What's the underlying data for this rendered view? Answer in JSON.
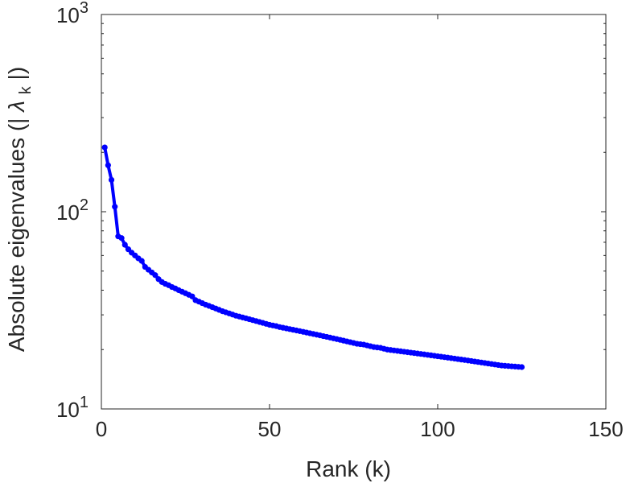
{
  "chart_data": {
    "type": "line",
    "title": "",
    "xlabel": "Rank (k)",
    "ylabel": "Absolute eigenvalues (|",
    "ylabel_symbol": "λ",
    "ylabel_subscript": "k",
    "ylabel_suffix": "|)",
    "xlim": [
      0,
      150
    ],
    "ylim": [
      10,
      1000
    ],
    "yscale": "log",
    "grid": false,
    "legend": "none",
    "x_ticks": [
      {
        "value": 0,
        "label": "0"
      },
      {
        "value": 50,
        "label": "50"
      },
      {
        "value": 100,
        "label": "100"
      },
      {
        "value": 150,
        "label": "150"
      }
    ],
    "y_ticks": [
      {
        "value": 10,
        "base": "10",
        "exp": "1"
      },
      {
        "value": 100,
        "base": "10",
        "exp": "2"
      },
      {
        "value": 1000,
        "base": "10",
        "exp": "3"
      }
    ],
    "series": [
      {
        "color": "#0000ff",
        "marker": "dot",
        "x": [
          1,
          2,
          3,
          4,
          5,
          6,
          7,
          8,
          9,
          10,
          11,
          12,
          13,
          14,
          15,
          16,
          17,
          18,
          19,
          20,
          21,
          22,
          23,
          24,
          25,
          26,
          27,
          28,
          29,
          30,
          31,
          32,
          33,
          34,
          35,
          36,
          37,
          38,
          39,
          40,
          41,
          42,
          43,
          44,
          45,
          46,
          47,
          48,
          49,
          50,
          51,
          52,
          53,
          54,
          55,
          56,
          57,
          58,
          59,
          60,
          61,
          62,
          63,
          64,
          65,
          66,
          67,
          68,
          69,
          70,
          71,
          72,
          73,
          74,
          75,
          76,
          77,
          78,
          79,
          80,
          81,
          82,
          83,
          84,
          85,
          86,
          87,
          88,
          89,
          90,
          91,
          92,
          93,
          94,
          95,
          96,
          97,
          98,
          99,
          100,
          101,
          102,
          103,
          104,
          105,
          106,
          107,
          108,
          109,
          110,
          111,
          112,
          113,
          114,
          115,
          116,
          117,
          118,
          119,
          120,
          121,
          122,
          123,
          124,
          125
        ],
        "y": [
          212.0,
          172.0,
          145.0,
          106.0,
          75.0,
          73.5,
          68.0,
          64.5,
          62.0,
          60.0,
          58.0,
          56.3,
          52.5,
          50.8,
          49.2,
          47.7,
          45.5,
          44.0,
          43.1,
          42.4,
          41.5,
          40.8,
          40.0,
          39.3,
          38.6,
          37.9,
          37.2,
          35.6,
          35.0,
          34.4,
          33.8,
          33.3,
          32.8,
          32.3,
          31.8,
          31.3,
          30.9,
          30.5,
          30.1,
          29.7,
          29.4,
          29.1,
          28.8,
          28.5,
          28.2,
          27.9,
          27.6,
          27.3,
          27.0,
          26.7,
          26.5,
          26.3,
          26.0,
          25.8,
          25.6,
          25.4,
          25.2,
          25.0,
          24.8,
          24.6,
          24.4,
          24.2,
          24.0,
          23.8,
          23.6,
          23.4,
          23.2,
          23.0,
          22.8,
          22.6,
          22.4,
          22.2,
          22.0,
          21.8,
          21.6,
          21.4,
          21.3,
          21.2,
          21.0,
          20.8,
          20.6,
          20.5,
          20.4,
          20.2,
          20.0,
          19.9,
          19.8,
          19.7,
          19.6,
          19.5,
          19.4,
          19.3,
          19.2,
          19.1,
          19.0,
          18.9,
          18.8,
          18.7,
          18.6,
          18.5,
          18.4,
          18.3,
          18.2,
          18.1,
          18.0,
          17.9,
          17.8,
          17.7,
          17.6,
          17.5,
          17.4,
          17.3,
          17.2,
          17.1,
          17.0,
          16.9,
          16.8,
          16.7,
          16.6,
          16.55,
          16.5,
          16.45,
          16.4,
          16.35,
          16.3
        ]
      }
    ]
  }
}
